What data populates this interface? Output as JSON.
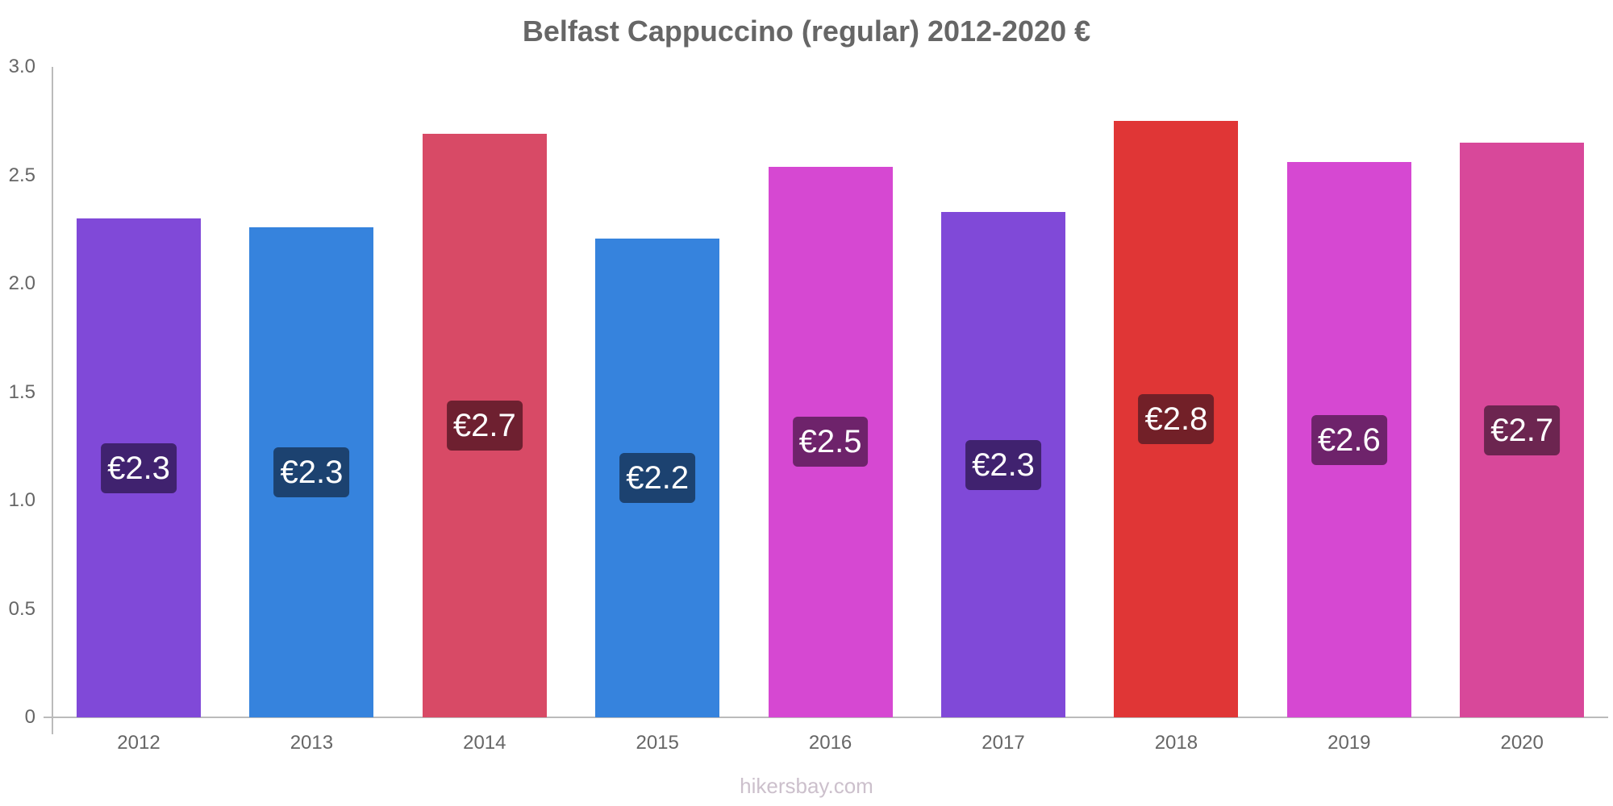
{
  "title": "Belfast Cappuccino (regular) 2012-2020 €",
  "watermark": "hikersbay.com",
  "y_ticks": [
    "0",
    "0.5",
    "1.0",
    "1.5",
    "2.0",
    "2.5",
    "3.0"
  ],
  "bars": [
    {
      "year": "2012",
      "value": 2.3,
      "label": "€2.3",
      "color": "#8049d8",
      "label_bg": "#40226f"
    },
    {
      "year": "2013",
      "value": 2.26,
      "label": "€2.3",
      "color": "#3683dd",
      "label_bg": "#1c4270"
    },
    {
      "year": "2014",
      "value": 2.69,
      "label": "€2.7",
      "color": "#d84a66",
      "label_bg": "#6e2030"
    },
    {
      "year": "2015",
      "value": 2.21,
      "label": "€2.2",
      "color": "#3683dd",
      "label_bg": "#1c4270"
    },
    {
      "year": "2016",
      "value": 2.54,
      "label": "€2.5",
      "color": "#d648d2",
      "label_bg": "#6e236b"
    },
    {
      "year": "2017",
      "value": 2.33,
      "label": "€2.3",
      "color": "#8049d8",
      "label_bg": "#40226f"
    },
    {
      "year": "2018",
      "value": 2.75,
      "label": "€2.8",
      "color": "#e03636",
      "label_bg": "#722028"
    },
    {
      "year": "2019",
      "value": 2.56,
      "label": "€2.6",
      "color": "#d648d2",
      "label_bg": "#6e236b"
    },
    {
      "year": "2020",
      "value": 2.65,
      "label": "€2.7",
      "color": "#d8489a",
      "label_bg": "#6c2550"
    }
  ],
  "chart_data": {
    "type": "bar",
    "title": "Belfast Cappuccino (regular) 2012-2020 €",
    "xlabel": "",
    "ylabel": "",
    "categories": [
      "2012",
      "2013",
      "2014",
      "2015",
      "2016",
      "2017",
      "2018",
      "2019",
      "2020"
    ],
    "values": [
      2.3,
      2.26,
      2.69,
      2.21,
      2.54,
      2.33,
      2.75,
      2.56,
      2.65
    ],
    "data_labels": [
      "€2.3",
      "€2.3",
      "€2.7",
      "€2.2",
      "€2.5",
      "€2.3",
      "€2.8",
      "€2.6",
      "€2.7"
    ],
    "ylim": [
      0,
      3.0
    ],
    "y_ticks": [
      0,
      0.5,
      1.0,
      1.5,
      2.0,
      2.5,
      3.0
    ],
    "grid": false,
    "legend": "none",
    "colors": [
      "#8049d8",
      "#3683dd",
      "#d84a66",
      "#3683dd",
      "#d648d2",
      "#8049d8",
      "#e03636",
      "#d648d2",
      "#d8489a"
    ],
    "source": "hikersbay.com"
  }
}
